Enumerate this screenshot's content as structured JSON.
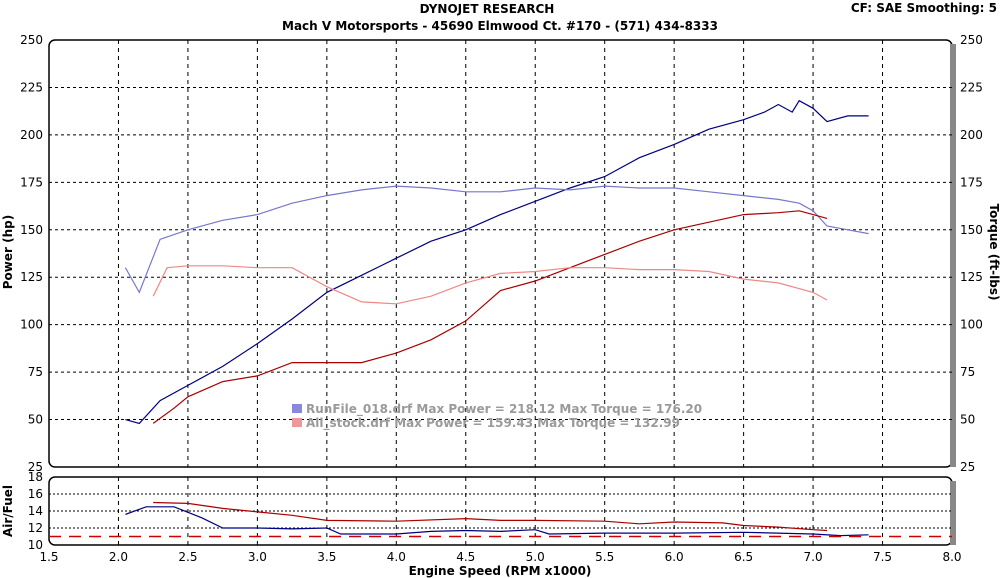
{
  "header": {
    "title": "DYNOJET RESEARCH",
    "subtitle": "Mach V Motorsports - 45690 Elmwood Ct. #170 - (571) 434-8333",
    "settings": "CF: SAE  Smoothing: 5"
  },
  "legend": [
    {
      "text": "RunFile_018.drf Max Power = 218.12     Max Torque = 176.20",
      "color": "#8888dd"
    },
    {
      "text": "All_stock.drf Max Power = 159.43     Max Torque = 132.99",
      "color": "#ee9999"
    }
  ],
  "chart_data": [
    {
      "type": "line",
      "title": "DYNOJET RESEARCH",
      "xlabel": "Engine Speed (RPM x1000)",
      "ylabel": "Power (hp)",
      "y2label": "Torque (ft-lbs)",
      "xlim": [
        1.5,
        8.0
      ],
      "ylim": [
        25,
        250
      ],
      "grid": true,
      "xticks": [
        "1.5",
        "2.0",
        "2.5",
        "3.0",
        "3.5",
        "4.0",
        "4.5",
        "5.0",
        "5.5",
        "6.0",
        "6.5",
        "7.0",
        "7.5",
        "8.0"
      ],
      "yticks": [
        "25",
        "50",
        "75",
        "100",
        "125",
        "150",
        "175",
        "200",
        "225",
        "250"
      ],
      "series": [
        {
          "name": "RunFile_018 Power",
          "color": "#000080",
          "x": [
            2.05,
            2.15,
            2.3,
            2.5,
            2.75,
            3.0,
            3.25,
            3.5,
            3.75,
            4.0,
            4.25,
            4.5,
            4.75,
            5.0,
            5.25,
            5.5,
            5.75,
            6.0,
            6.25,
            6.5,
            6.65,
            6.75,
            6.85,
            6.9,
            7.0,
            7.1,
            7.25,
            7.4
          ],
          "y": [
            50,
            48,
            60,
            68,
            78,
            90,
            103,
            117,
            126,
            135,
            144,
            150,
            158,
            165,
            172,
            178,
            188,
            195,
            203,
            208,
            212,
            216,
            212,
            218,
            214,
            207,
            210,
            210
          ]
        },
        {
          "name": "RunFile_018 Torque",
          "color": "#7777cc",
          "x": [
            2.05,
            2.15,
            2.3,
            2.5,
            2.75,
            3.0,
            3.25,
            3.5,
            3.75,
            4.0,
            4.25,
            4.5,
            4.75,
            5.0,
            5.25,
            5.5,
            5.75,
            6.0,
            6.25,
            6.5,
            6.75,
            6.9,
            7.0,
            7.1,
            7.25,
            7.4
          ],
          "y": [
            130,
            117,
            145,
            150,
            155,
            158,
            164,
            168,
            171,
            173,
            172,
            170,
            170,
            172,
            171,
            173,
            172,
            172,
            170,
            168,
            166,
            164,
            160,
            152,
            150,
            148
          ]
        },
        {
          "name": "All_stock Power",
          "color": "#aa0000",
          "x": [
            2.25,
            2.4,
            2.5,
            2.75,
            3.0,
            3.25,
            3.5,
            3.75,
            4.0,
            4.25,
            4.5,
            4.75,
            5.0,
            5.25,
            5.5,
            5.75,
            6.0,
            6.25,
            6.5,
            6.75,
            6.9,
            7.0,
            7.1
          ],
          "y": [
            48,
            56,
            62,
            70,
            73,
            80,
            80,
            80,
            85,
            92,
            102,
            118,
            123,
            130,
            137,
            144,
            150,
            154,
            158,
            159,
            160,
            158,
            156
          ]
        },
        {
          "name": "All_stock Torque",
          "color": "#ee8888",
          "x": [
            2.25,
            2.35,
            2.5,
            2.75,
            3.0,
            3.25,
            3.5,
            3.75,
            4.0,
            4.25,
            4.5,
            4.75,
            5.0,
            5.25,
            5.5,
            5.75,
            6.0,
            6.25,
            6.5,
            6.75,
            7.0,
            7.1
          ],
          "y": [
            115,
            130,
            131,
            131,
            130,
            130,
            120,
            112,
            111,
            115,
            122,
            127,
            128,
            130,
            130,
            129,
            129,
            128,
            124,
            122,
            117,
            113
          ]
        }
      ]
    },
    {
      "type": "line",
      "ylabel": "Air/Fuel",
      "xlim": [
        1.5,
        8.0
      ],
      "ylim": [
        10,
        18
      ],
      "yticks": [
        "10",
        "12",
        "14",
        "16",
        "18"
      ],
      "series": [
        {
          "name": "RunFile_018 AFR",
          "color": "#000080",
          "x": [
            2.05,
            2.2,
            2.4,
            2.6,
            2.75,
            3.0,
            3.25,
            3.5,
            3.6,
            4.0,
            4.25,
            4.5,
            4.75,
            5.0,
            5.1,
            5.5,
            6.0,
            6.5,
            7.0,
            7.2,
            7.4
          ],
          "y": [
            13.6,
            14.5,
            14.5,
            13.2,
            12,
            12,
            11.9,
            12,
            11.3,
            11.3,
            11.6,
            11.7,
            11.6,
            11.8,
            11.3,
            11.4,
            11.4,
            11.5,
            11.3,
            11.1,
            11.2
          ]
        },
        {
          "name": "All_stock AFR",
          "color": "#aa0000",
          "x": [
            2.25,
            2.5,
            2.75,
            3.0,
            3.25,
            3.5,
            4.0,
            4.5,
            4.75,
            5.0,
            5.5,
            5.75,
            6.0,
            6.35,
            6.5,
            6.75,
            7.0,
            7.1
          ],
          "y": [
            15,
            14.9,
            14.3,
            13.9,
            13.5,
            12.9,
            12.8,
            13.1,
            12.9,
            12.9,
            12.8,
            12.5,
            12.7,
            12.6,
            12.3,
            12.1,
            11.8,
            11.7
          ]
        },
        {
          "name": "Reference",
          "color": "#cc0000",
          "dashed": true,
          "x": [
            1.5,
            8.0
          ],
          "y": [
            11,
            11
          ]
        }
      ]
    }
  ]
}
